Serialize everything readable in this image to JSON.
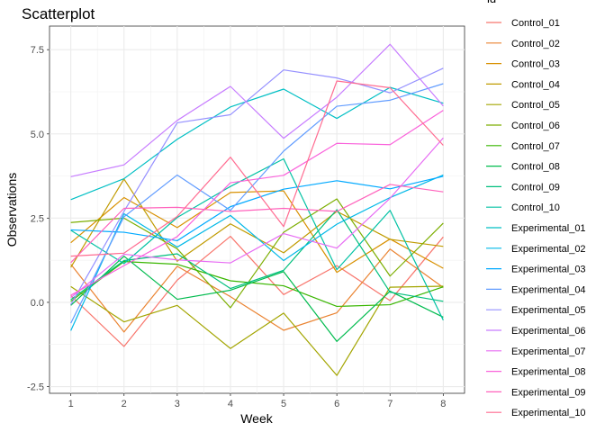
{
  "chart_data": {
    "type": "line",
    "title": "Scatterplot",
    "xlabel": "Week",
    "ylabel": "Observations",
    "legend_title": "id",
    "legend_position": "right",
    "grid": true,
    "xlim": [
      0.6,
      8.4
    ],
    "ylim": [
      -2.7,
      8.2
    ],
    "xticks": [
      1,
      2,
      3,
      4,
      5,
      6,
      7,
      8
    ],
    "yticks": [
      -2.5,
      0.0,
      2.5,
      5.0,
      7.5
    ],
    "ytick_labels": [
      "-2.5",
      "0.0",
      "2.5",
      "5.0",
      "7.5"
    ],
    "x": [
      1,
      2,
      3,
      4,
      5,
      6,
      7,
      8
    ],
    "series": [
      {
        "name": "Control_01",
        "color": "#F8766D",
        "values": [
          0.2,
          -1.31,
          0.66,
          1.96,
          0.23,
          1.09,
          0.05,
          1.94
        ]
      },
      {
        "name": "Control_02",
        "color": "#EA8331",
        "values": [
          1.13,
          -0.88,
          1.07,
          0.17,
          -0.83,
          -0.31,
          1.58,
          0.44
        ]
      },
      {
        "name": "Control_03",
        "color": "#D89000",
        "values": [
          1.77,
          3.11,
          2.22,
          3.26,
          3.31,
          0.89,
          1.88,
          1.01
        ]
      },
      {
        "name": "Control_04",
        "color": "#C09B00",
        "values": [
          1.04,
          3.66,
          1.22,
          2.33,
          1.47,
          2.7,
          1.87,
          1.66
        ]
      },
      {
        "name": "Control_05",
        "color": "#A3A500",
        "values": [
          0.47,
          -0.58,
          -0.09,
          -1.37,
          -0.32,
          -2.17,
          0.45,
          0.48
        ]
      },
      {
        "name": "Control_06",
        "color": "#7CAE00",
        "values": [
          2.37,
          2.5,
          1.59,
          -0.16,
          2.08,
          3.07,
          0.78,
          2.35
        ]
      },
      {
        "name": "Control_07",
        "color": "#39B600",
        "values": [
          0.03,
          1.21,
          1.13,
          0.64,
          0.49,
          -0.12,
          -0.07,
          0.46
        ]
      },
      {
        "name": "Control_08",
        "color": "#00BB4E",
        "values": [
          -0.09,
          1.37,
          0.09,
          0.36,
          0.91,
          -1.16,
          0.33,
          -0.44
        ]
      },
      {
        "name": "Control_09",
        "color": "#00BF7D",
        "values": [
          0.08,
          1.24,
          1.44,
          0.41,
          0.95,
          2.75,
          0.3,
          0.03
        ]
      },
      {
        "name": "Control_10",
        "color": "#00C1A3",
        "values": [
          2.14,
          1.15,
          2.52,
          3.44,
          4.26,
          0.97,
          2.73,
          -0.53
        ]
      },
      {
        "name": "Experimental_01",
        "color": "#00BFC4",
        "values": [
          3.05,
          3.67,
          4.84,
          5.8,
          6.33,
          5.46,
          6.38,
          5.91
        ]
      },
      {
        "name": "Experimental_02",
        "color": "#00B8E7",
        "values": [
          -0.84,
          2.63,
          1.64,
          2.58,
          1.24,
          2.32,
          3.11,
          3.78
        ]
      },
      {
        "name": "Experimental_03",
        "color": "#00A9FF",
        "values": [
          2.15,
          2.08,
          1.83,
          2.84,
          3.36,
          3.61,
          3.37,
          3.74
        ]
      },
      {
        "name": "Experimental_04",
        "color": "#619CFF",
        "values": [
          -0.62,
          2.54,
          3.78,
          2.73,
          4.49,
          5.82,
          6.0,
          6.49
        ]
      },
      {
        "name": "Experimental_05",
        "color": "#9590FF",
        "values": [
          -0.07,
          2.7,
          5.33,
          5.57,
          6.9,
          6.66,
          6.22,
          6.95
        ]
      },
      {
        "name": "Experimental_06",
        "color": "#C77CFF",
        "values": [
          3.73,
          4.08,
          5.4,
          6.41,
          4.87,
          6.09,
          7.66,
          5.83
        ]
      },
      {
        "name": "Experimental_07",
        "color": "#E76BF3",
        "values": [
          0.14,
          1.43,
          1.26,
          1.17,
          2.04,
          1.61,
          3.09,
          4.88
        ]
      },
      {
        "name": "Experimental_08",
        "color": "#FA62DB",
        "values": [
          0.21,
          1.09,
          1.95,
          3.55,
          3.77,
          4.72,
          4.68,
          5.7
        ]
      },
      {
        "name": "Experimental_09",
        "color": "#FF62BC",
        "values": [
          1.18,
          2.79,
          2.82,
          2.7,
          2.79,
          2.7,
          3.5,
          3.28
        ]
      },
      {
        "name": "Experimental_10",
        "color": "#FF6C91",
        "values": [
          1.37,
          1.46,
          2.55,
          4.31,
          2.25,
          6.57,
          6.37,
          4.66
        ]
      }
    ]
  }
}
